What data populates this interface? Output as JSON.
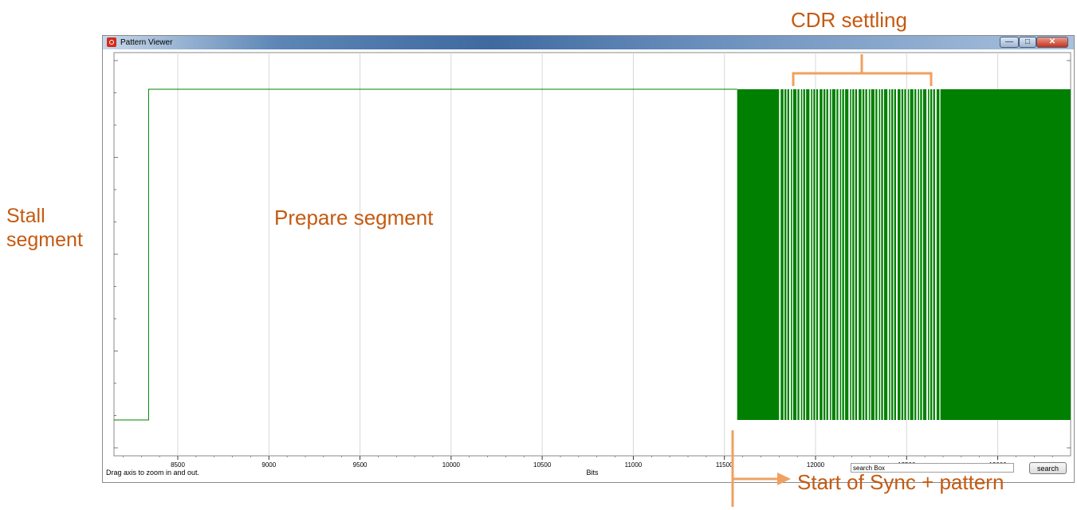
{
  "window": {
    "title": "Pattern Viewer",
    "minimize_glyph": "—",
    "maximize_glyph": "□",
    "close_glyph": "✕"
  },
  "status_text": "Drag axis to zoom in and out.",
  "search": {
    "value": "search Box",
    "button_label": "search"
  },
  "annotations": {
    "stall": [
      "Stall",
      "segment"
    ],
    "prepare": "Prepare segment",
    "cdr": "CDR settling",
    "sync": "Start of Sync + pattern"
  },
  "colors": {
    "signal": "#008000",
    "annotation": "#c55a11",
    "grid": "#d8d8d8"
  },
  "chart_data": {
    "type": "line",
    "title": "",
    "xlabel": "Bits",
    "ylabel": "",
    "xlim": [
      8150,
      13400
    ],
    "ylim": [
      0,
      1
    ],
    "x_ticks": [
      8500,
      9000,
      9500,
      10000,
      10500,
      11000,
      11500,
      12000,
      12500,
      13000
    ],
    "grid": true,
    "segments": [
      {
        "name": "stall",
        "x_start": 8150,
        "x_end": 8340,
        "level": 0
      },
      {
        "name": "prepare",
        "x_start": 8340,
        "x_end": 11570,
        "level": 1
      },
      {
        "name": "data",
        "x_start": 11570,
        "x_end": 13400,
        "level": "toggling"
      }
    ],
    "cdr_settling_range": [
      11870,
      12660
    ],
    "sync_start": 11570
  }
}
